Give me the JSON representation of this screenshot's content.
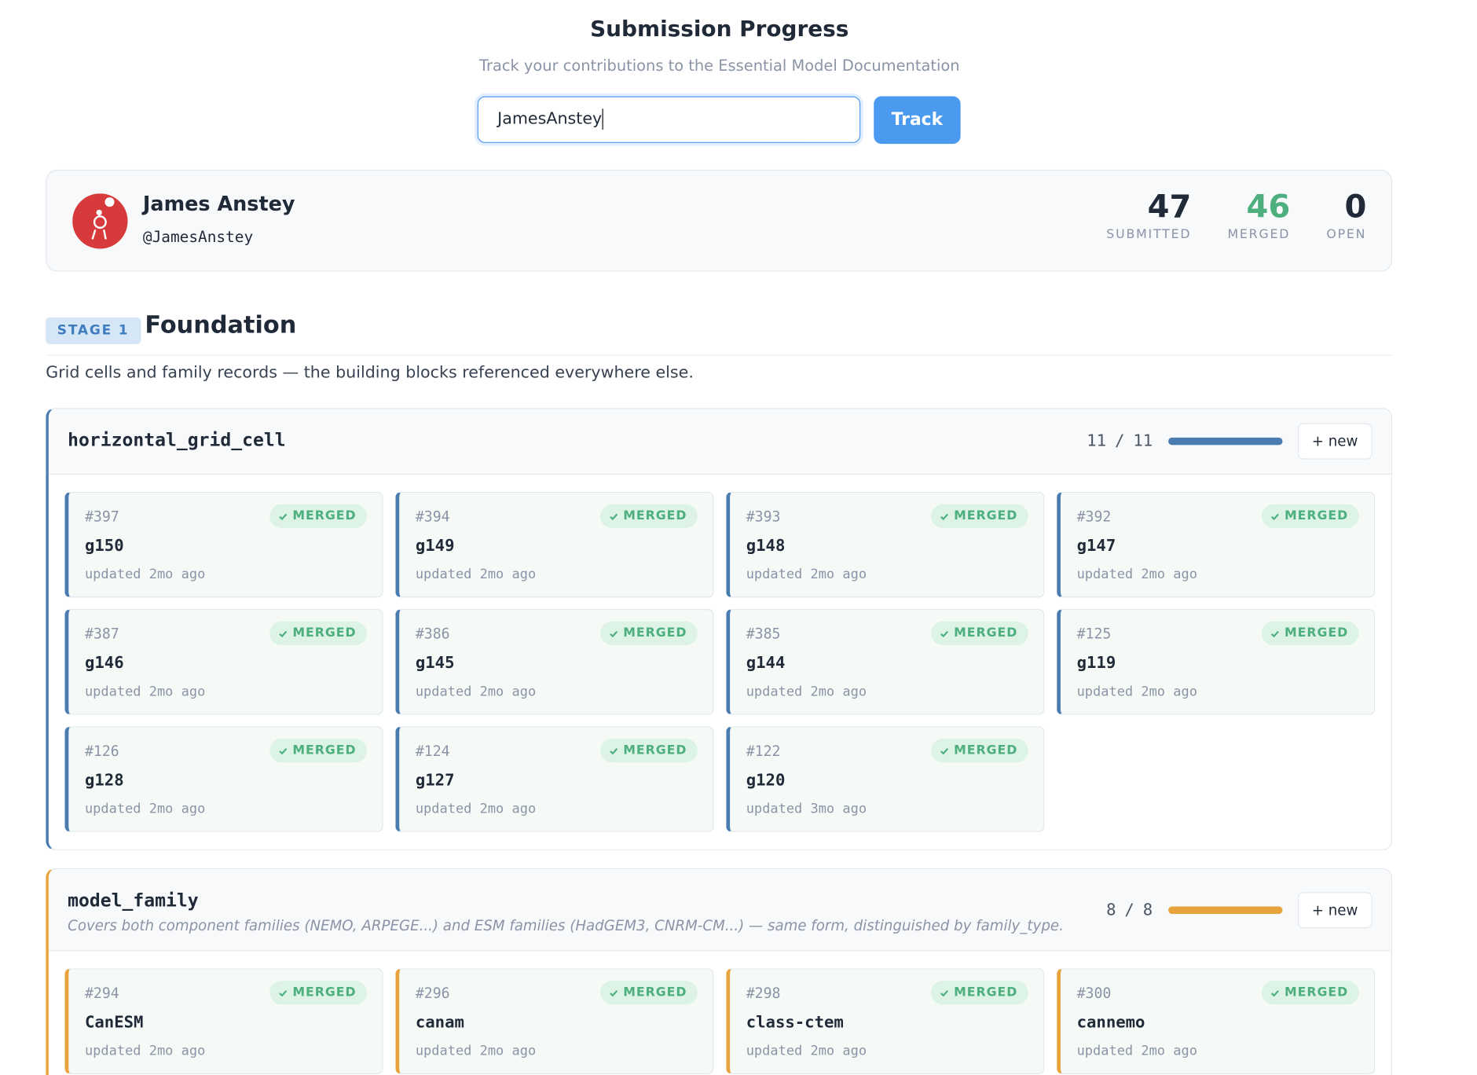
{
  "header": {
    "title": "Submission Progress",
    "subtitle": "Track your contributions to the Essential Model Documentation",
    "input_value": "JamesAnstey",
    "button": "Track"
  },
  "profile": {
    "name": "James Anstey",
    "handle": "@JamesAnstey",
    "stats": [
      {
        "value": 47,
        "label": "SUBMITTED",
        "color": "#1f2937"
      },
      {
        "value": 46,
        "label": "MERGED",
        "color": "#4caf7d"
      },
      {
        "value": 0,
        "label": "OPEN",
        "color": "#1f2937"
      }
    ]
  },
  "stage": {
    "badge": "STAGE 1",
    "title": "Foundation",
    "description": "Grid cells and family records — the building blocks referenced everywhere else."
  },
  "groups": [
    {
      "name": "horizontal_grid_cell",
      "color": "#4a7cb0",
      "progress": {
        "done": 11,
        "separator": "/",
        "total": 11
      },
      "button": "+ new",
      "cards": [
        {
          "number": "#397",
          "status": "MERGED",
          "name": "g150",
          "updated": "updated 2mo ago"
        },
        {
          "number": "#394",
          "status": "MERGED",
          "name": "g149",
          "updated": "updated 2mo ago"
        },
        {
          "number": "#393",
          "status": "MERGED",
          "name": "g148",
          "updated": "updated 2mo ago"
        },
        {
          "number": "#392",
          "status": "MERGED",
          "name": "g147",
          "updated": "updated 2mo ago"
        },
        {
          "number": "#387",
          "status": "MERGED",
          "name": "g146",
          "updated": "updated 2mo ago"
        },
        {
          "number": "#386",
          "status": "MERGED",
          "name": "g145",
          "updated": "updated 2mo ago"
        },
        {
          "number": "#385",
          "status": "MERGED",
          "name": "g144",
          "updated": "updated 2mo ago"
        },
        {
          "number": "#125",
          "status": "MERGED",
          "name": "g119",
          "updated": "updated 2mo ago"
        },
        {
          "number": "#126",
          "status": "MERGED",
          "name": "g128",
          "updated": "updated 2mo ago"
        },
        {
          "number": "#124",
          "status": "MERGED",
          "name": "g127",
          "updated": "updated 2mo ago"
        },
        {
          "number": "#122",
          "status": "MERGED",
          "name": "g120",
          "updated": "updated 3mo ago"
        }
      ]
    },
    {
      "name": "model_family",
      "note": "Covers both component families (NEMO, ARPEGE...) and ESM families (HadGEM3, CNRM-CM...) — same form, distinguished by family_type.",
      "color": "#e8a33d",
      "progress": {
        "done": 8,
        "separator": "/",
        "total": 8
      },
      "button": "+ new",
      "cards": [
        {
          "number": "#294",
          "status": "MERGED",
          "name": "CanESM",
          "updated": "updated 2mo ago"
        },
        {
          "number": "#296",
          "status": "MERGED",
          "name": "canam",
          "updated": "updated 2mo ago"
        },
        {
          "number": "#298",
          "status": "MERGED",
          "name": "class-ctem",
          "updated": "updated 2mo ago"
        },
        {
          "number": "#300",
          "status": "MERGED",
          "name": "cannemo",
          "updated": "updated 2mo ago"
        }
      ]
    }
  ]
}
